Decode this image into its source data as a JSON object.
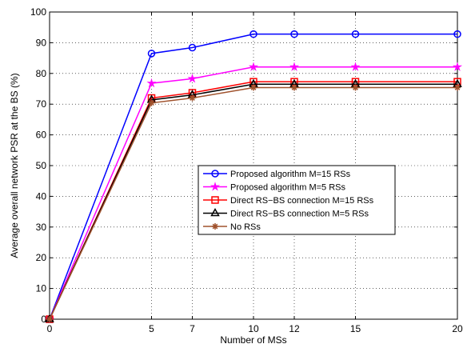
{
  "chart_data": {
    "type": "line",
    "title": "",
    "xlabel": "Number of MSs",
    "ylabel": "Average overall network PSR at the BS (%)",
    "xlim": [
      0,
      20
    ],
    "ylim": [
      0,
      100
    ],
    "xticks": [
      0,
      5,
      7,
      10,
      12,
      15,
      20
    ],
    "yticks": [
      0,
      10,
      20,
      30,
      40,
      50,
      60,
      70,
      80,
      90,
      100
    ],
    "grid": true,
    "legend_position": "center-right",
    "x": [
      0,
      5,
      7,
      10,
      12,
      15,
      20
    ],
    "series": [
      {
        "name": "Proposed algorithm M=15 RSs",
        "color": "#0000ff",
        "marker": "circle",
        "values": [
          0,
          86.5,
          88.4,
          92.8,
          92.8,
          92.8,
          92.8
        ]
      },
      {
        "name": "Proposed algorithm M=5 RSs",
        "color": "#ff00ff",
        "marker": "star",
        "values": [
          0,
          76.8,
          78.3,
          82.1,
          82.1,
          82.1,
          82.1
        ]
      },
      {
        "name": "Direct RS−BS connection M=15 RSs",
        "color": "#ff0000",
        "marker": "square",
        "values": [
          0,
          72.0,
          73.7,
          77.3,
          77.3,
          77.3,
          77.3
        ]
      },
      {
        "name": "Direct RS−BS connection M=5 RSs",
        "color": "#000000",
        "marker": "triangle",
        "values": [
          0,
          71.4,
          73.0,
          76.5,
          76.5,
          76.5,
          76.5
        ]
      },
      {
        "name": "No RSs",
        "color": "#a0522d",
        "marker": "asterisk",
        "values": [
          0,
          70.4,
          72.0,
          75.4,
          75.4,
          75.4,
          75.4
        ]
      }
    ]
  }
}
